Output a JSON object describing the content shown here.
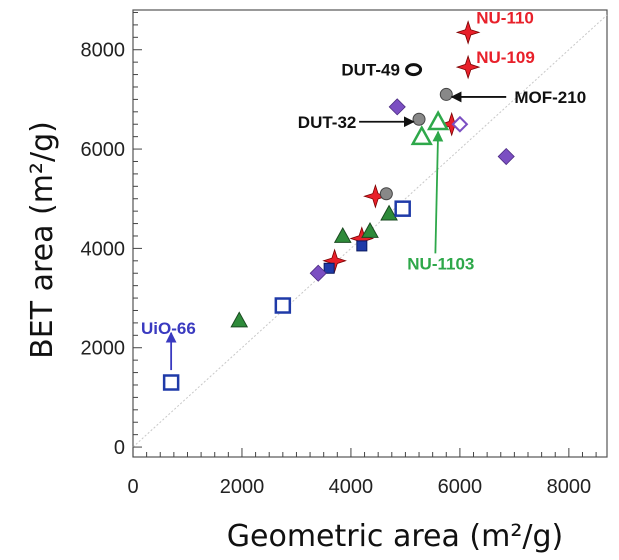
{
  "chart_data": {
    "type": "scatter",
    "xlabel": "Geometric area (m²/g)",
    "ylabel": "BET area (m²/g)",
    "xlim": [
      0,
      8700
    ],
    "ylim": [
      -200,
      8800
    ],
    "xticks": [
      "0",
      "2000",
      "4000",
      "6000",
      "8000"
    ],
    "yticks": [
      "0",
      "2000",
      "4000",
      "6000",
      "8000"
    ],
    "xtick_values": [
      0,
      2000,
      4000,
      6000,
      8000
    ],
    "ytick_values": [
      0,
      2000,
      4000,
      6000,
      8000
    ],
    "grid": false,
    "reference_line": "y = x",
    "colors": {
      "red": "#e8202a",
      "green": "#2e8b3a",
      "blue": "#1f3aa8",
      "purple": "#7b4fc2",
      "gray": "#888888",
      "label_red": "#e8202a",
      "label_green": "#2ea84a",
      "label_blue": "#3a3ac0",
      "label_black": "#111111"
    },
    "series": [
      {
        "marker": "red-star",
        "points": [
          [
            3700,
            3750
          ],
          [
            4200,
            4200
          ],
          [
            4450,
            5050
          ],
          [
            5850,
            6500
          ],
          [
            6150,
            7650
          ],
          [
            6150,
            8350
          ]
        ]
      },
      {
        "marker": "green-filled-triangle",
        "points": [
          [
            1950,
            2550
          ],
          [
            3850,
            4250
          ],
          [
            4350,
            4350
          ],
          [
            4700,
            4700
          ]
        ]
      },
      {
        "marker": "green-open-triangle",
        "points": [
          [
            5300,
            6250
          ],
          [
            5600,
            6550
          ]
        ]
      },
      {
        "marker": "blue-open-square",
        "points": [
          [
            700,
            1300
          ],
          [
            2750,
            2850
          ],
          [
            4950,
            4800
          ]
        ]
      },
      {
        "marker": "blue-filled-square",
        "points": [
          [
            3600,
            3600
          ],
          [
            4200,
            4050
          ]
        ]
      },
      {
        "marker": "purple-filled-diamond",
        "points": [
          [
            3400,
            3500
          ],
          [
            4850,
            6850
          ],
          [
            6850,
            5850
          ]
        ]
      },
      {
        "marker": "purple-open-diamond",
        "points": [
          [
            6000,
            6500
          ]
        ]
      },
      {
        "marker": "gray-circle",
        "points": [
          [
            4650,
            5100
          ],
          [
            5250,
            6600
          ],
          [
            5750,
            7100
          ]
        ]
      },
      {
        "marker": "black-open-circle",
        "points": [
          [
            5150,
            7600
          ]
        ]
      }
    ],
    "annotations": [
      {
        "text": "NU-110",
        "color": "label_red",
        "at": [
          6300,
          8650
        ],
        "anchor": "start"
      },
      {
        "text": "NU-109",
        "color": "label_red",
        "at": [
          6300,
          7850
        ],
        "anchor": "start"
      },
      {
        "text": "DUT-49",
        "color": "label_black",
        "at": [
          4900,
          7600
        ],
        "anchor": "end"
      },
      {
        "text": "MOF-210",
        "color": "label_black",
        "at": [
          7000,
          7050
        ],
        "anchor": "start",
        "arrow_from": [
          6850,
          7050
        ],
        "arrow_to": [
          5850,
          7050
        ]
      },
      {
        "text": "DUT-32",
        "color": "label_black",
        "at": [
          4100,
          6550
        ],
        "anchor": "end",
        "arrow_from": [
          4150,
          6550
        ],
        "arrow_to": [
          5150,
          6550
        ]
      },
      {
        "text": "NU-1103",
        "color": "label_green",
        "at": [
          5650,
          3700
        ],
        "anchor": "middle",
        "arrow_from": [
          5550,
          3900
        ],
        "arrow_to": [
          5600,
          6350
        ]
      },
      {
        "text": "UiO-66",
        "color": "label_blue",
        "at": [
          650,
          2400
        ],
        "anchor": "middle",
        "arrow_from": [
          700,
          1550
        ],
        "arrow_to": [
          700,
          2300
        ]
      }
    ]
  }
}
